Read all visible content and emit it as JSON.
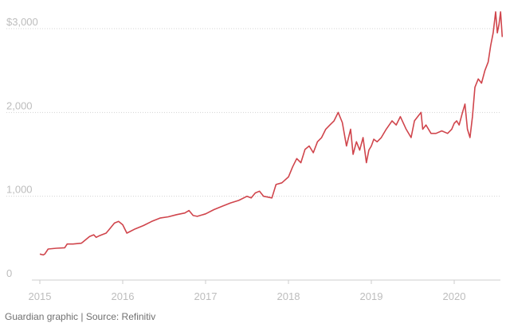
{
  "chart_data": {
    "type": "line",
    "title": "",
    "xlabel": "",
    "ylabel": "",
    "xlim": [
      2015.0,
      2020.58
    ],
    "ylim": [
      0,
      3200
    ],
    "y_ticks": [
      {
        "value": 0,
        "label": "0"
      },
      {
        "value": 1000,
        "label": "1,000"
      },
      {
        "value": 2000,
        "label": "2,000"
      },
      {
        "value": 3000,
        "label": "$3,000"
      }
    ],
    "x_ticks": [
      {
        "value": 2015,
        "label": "2015"
      },
      {
        "value": 2016,
        "label": "2016"
      },
      {
        "value": 2017,
        "label": "2017"
      },
      {
        "value": 2018,
        "label": "2018"
      },
      {
        "value": 2019,
        "label": "2019"
      },
      {
        "value": 2020,
        "label": "2020"
      }
    ],
    "grid": true,
    "series": [
      {
        "color": "#d0454c",
        "x": [
          2015.0,
          2015.04,
          2015.06,
          2015.1,
          2015.2,
          2015.3,
          2015.33,
          2015.4,
          2015.5,
          2015.52,
          2015.6,
          2015.65,
          2015.68,
          2015.72,
          2015.8,
          2015.85,
          2015.9,
          2015.95,
          2016.0,
          2016.05,
          2016.09,
          2016.15,
          2016.25,
          2016.35,
          2016.45,
          2016.55,
          2016.65,
          2016.75,
          2016.8,
          2016.85,
          2016.9,
          2017.0,
          2017.1,
          2017.2,
          2017.3,
          2017.4,
          2017.5,
          2017.55,
          2017.6,
          2017.65,
          2017.7,
          2017.75,
          2017.8,
          2017.85,
          2017.92,
          2018.0,
          2018.05,
          2018.1,
          2018.15,
          2018.2,
          2018.25,
          2018.3,
          2018.35,
          2018.4,
          2018.45,
          2018.5,
          2018.55,
          2018.6,
          2018.65,
          2018.7,
          2018.75,
          2018.78,
          2018.82,
          2018.86,
          2018.9,
          2018.94,
          2018.97,
          2019.0,
          2019.03,
          2019.07,
          2019.12,
          2019.18,
          2019.25,
          2019.3,
          2019.35,
          2019.42,
          2019.48,
          2019.52,
          2019.56,
          2019.6,
          2019.62,
          2019.66,
          2019.72,
          2019.78,
          2019.85,
          2019.92,
          2019.97,
          2020.0,
          2020.03,
          2020.06,
          2020.1,
          2020.13,
          2020.16,
          2020.19,
          2020.22,
          2020.25,
          2020.29,
          2020.33,
          2020.37,
          2020.41,
          2020.44,
          2020.47,
          2020.5,
          2020.52,
          2020.54,
          2020.56,
          2020.58
        ],
        "values": [
          310,
          300,
          310,
          370,
          380,
          385,
          430,
          430,
          440,
          455,
          520,
          540,
          510,
          530,
          560,
          620,
          680,
          700,
          660,
          560,
          580,
          610,
          650,
          700,
          740,
          755,
          780,
          800,
          830,
          770,
          760,
          790,
          840,
          880,
          920,
          950,
          1000,
          980,
          1040,
          1060,
          1000,
          990,
          980,
          1140,
          1160,
          1230,
          1350,
          1450,
          1400,
          1560,
          1600,
          1520,
          1650,
          1700,
          1800,
          1850,
          1900,
          2000,
          1880,
          1600,
          1800,
          1500,
          1650,
          1550,
          1700,
          1400,
          1550,
          1600,
          1680,
          1650,
          1700,
          1800,
          1900,
          1850,
          1950,
          1800,
          1700,
          1900,
          1950,
          2000,
          1800,
          1850,
          1750,
          1750,
          1780,
          1750,
          1800,
          1870,
          1900,
          1850,
          2000,
          2100,
          1800,
          1700,
          1950,
          2300,
          2400,
          2350,
          2500,
          2600,
          2800,
          2950,
          3200,
          2950,
          3050,
          3200,
          2900
        ]
      }
    ]
  },
  "source": "Guardian graphic | Source: Refinitiv"
}
